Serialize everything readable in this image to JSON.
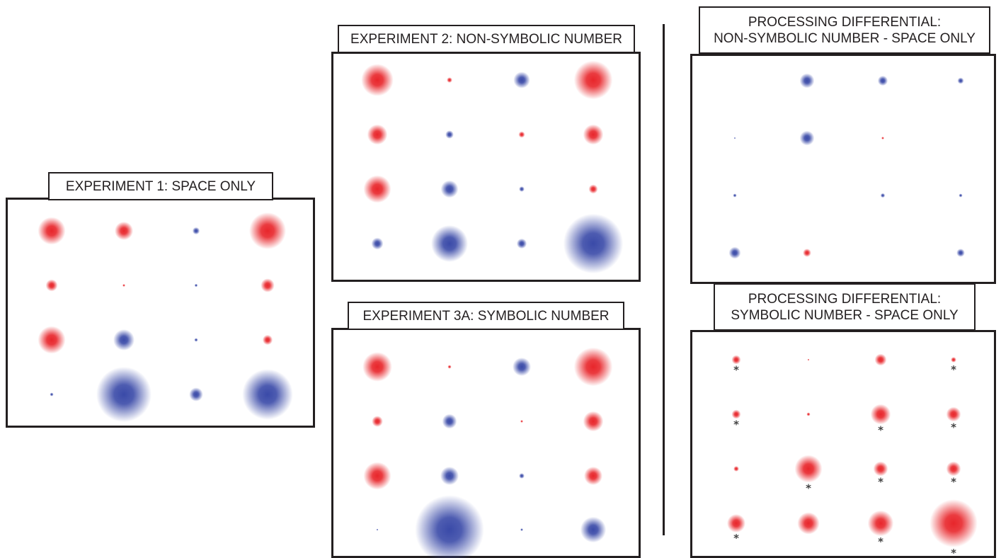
{
  "colors": {
    "positive": "#e8262b",
    "negative": "#3a4aa8",
    "frame": "#231f20",
    "asterisk": "#444444"
  },
  "panels": [
    {
      "id": "exp1",
      "title_lines": [
        "EXPERIMENT 1: SPACE ONLY"
      ],
      "grid": [
        [
          {
            "c": "r",
            "s": 3
          },
          {
            "c": "r",
            "s": 2
          },
          {
            "c": "b",
            "s": 0.8
          },
          {
            "c": "r",
            "s": 4
          }
        ],
        [
          {
            "c": "r",
            "s": 1.3
          },
          {
            "c": "r",
            "s": 0.3
          },
          {
            "c": "b",
            "s": 0.35
          },
          {
            "c": "r",
            "s": 1.5
          }
        ],
        [
          {
            "c": "r",
            "s": 3
          },
          {
            "c": "b",
            "s": 2.3
          },
          {
            "c": "b",
            "s": 0.4
          },
          {
            "c": "r",
            "s": 1.1
          }
        ],
        [
          {
            "c": "b",
            "s": 0.4
          },
          {
            "c": "b",
            "s": 6
          },
          {
            "c": "b",
            "s": 1.5
          },
          {
            "c": "b",
            "s": 5.5
          }
        ]
      ]
    },
    {
      "id": "exp2",
      "title_lines": [
        "EXPERIMENT 2: NON-SYMBOLIC NUMBER"
      ],
      "grid": [
        [
          {
            "c": "r",
            "s": 3.5
          },
          {
            "c": "r",
            "s": 0.6
          },
          {
            "c": "b",
            "s": 1.8
          },
          {
            "c": "r",
            "s": 4.2
          }
        ],
        [
          {
            "c": "r",
            "s": 2.2
          },
          {
            "c": "b",
            "s": 0.9
          },
          {
            "c": "r",
            "s": 0.7
          },
          {
            "c": "r",
            "s": 2.2
          }
        ],
        [
          {
            "c": "r",
            "s": 3
          },
          {
            "c": "b",
            "s": 1.9
          },
          {
            "c": "b",
            "s": 0.6
          },
          {
            "c": "r",
            "s": 1
          }
        ],
        [
          {
            "c": "b",
            "s": 1.3
          },
          {
            "c": "b",
            "s": 4
          },
          {
            "c": "b",
            "s": 1.1
          },
          {
            "c": "b",
            "s": 6.5
          }
        ]
      ]
    },
    {
      "id": "exp3a",
      "title_lines": [
        "EXPERIMENT 3A: SYMBOLIC NUMBER"
      ],
      "grid": [
        [
          {
            "c": "r",
            "s": 3.2
          },
          {
            "c": "r",
            "s": 0.4
          },
          {
            "c": "b",
            "s": 2
          },
          {
            "c": "r",
            "s": 4.2
          }
        ],
        [
          {
            "c": "r",
            "s": 1.2
          },
          {
            "c": "b",
            "s": 1.6
          },
          {
            "c": "r",
            "s": 0.3
          },
          {
            "c": "r",
            "s": 2.2
          }
        ],
        [
          {
            "c": "r",
            "s": 3
          },
          {
            "c": "b",
            "s": 2
          },
          {
            "c": "b",
            "s": 0.6
          },
          {
            "c": "r",
            "s": 2
          }
        ],
        [
          {
            "c": "b",
            "s": 0.2
          },
          {
            "c": "b",
            "s": 7.5
          },
          {
            "c": "b",
            "s": 0.3
          },
          {
            "c": "b",
            "s": 2.8
          }
        ]
      ]
    },
    {
      "id": "diff-nonsym",
      "title_lines": [
        "PROCESSING DIFFERENTIAL:",
        "NON-SYMBOLIC NUMBER - SPACE ONLY"
      ],
      "grid": [
        [
          null,
          {
            "c": "b",
            "s": 1.6
          },
          {
            "c": "b",
            "s": 1.1
          },
          {
            "c": "b",
            "s": 0.7
          }
        ],
        [
          {
            "c": "b",
            "s": 0.05
          },
          {
            "c": "b",
            "s": 1.6
          },
          {
            "c": "r",
            "s": 0.3
          },
          null
        ],
        [
          {
            "c": "b",
            "s": 0.4
          },
          null,
          {
            "c": "b",
            "s": 0.5
          },
          {
            "c": "b",
            "s": 0.4
          }
        ],
        [
          {
            "c": "b",
            "s": 1.3
          },
          {
            "c": "r",
            "s": 0.9
          },
          null,
          {
            "c": "b",
            "s": 0.9
          }
        ]
      ]
    },
    {
      "id": "diff-sym",
      "title_lines": [
        "PROCESSING DIFFERENTIAL:",
        "SYMBOLIC NUMBER - SPACE ONLY"
      ],
      "grid": [
        [
          {
            "c": "r",
            "s": 1,
            "star": true
          },
          {
            "c": "r",
            "s": 0.2
          },
          {
            "c": "r",
            "s": 1.3
          },
          {
            "c": "r",
            "s": 0.6,
            "star": true
          }
        ],
        [
          {
            "c": "r",
            "s": 1,
            "star": true
          },
          {
            "c": "r",
            "s": 0.4
          },
          {
            "c": "r",
            "s": 2.2,
            "star": true
          },
          {
            "c": "r",
            "s": 1.6,
            "star": true
          }
        ],
        [
          {
            "c": "r",
            "s": 0.6
          },
          {
            "c": "r",
            "s": 3,
            "star": true
          },
          {
            "c": "r",
            "s": 1.6,
            "star": true
          },
          {
            "c": "r",
            "s": 1.6,
            "star": true
          }
        ],
        [
          {
            "c": "r",
            "s": 2,
            "star": true
          },
          {
            "c": "r",
            "s": 2.4
          },
          {
            "c": "r",
            "s": 2.8,
            "star": true
          },
          {
            "c": "r",
            "s": 5.2,
            "star": true
          }
        ]
      ]
    }
  ],
  "asterisk": "*"
}
